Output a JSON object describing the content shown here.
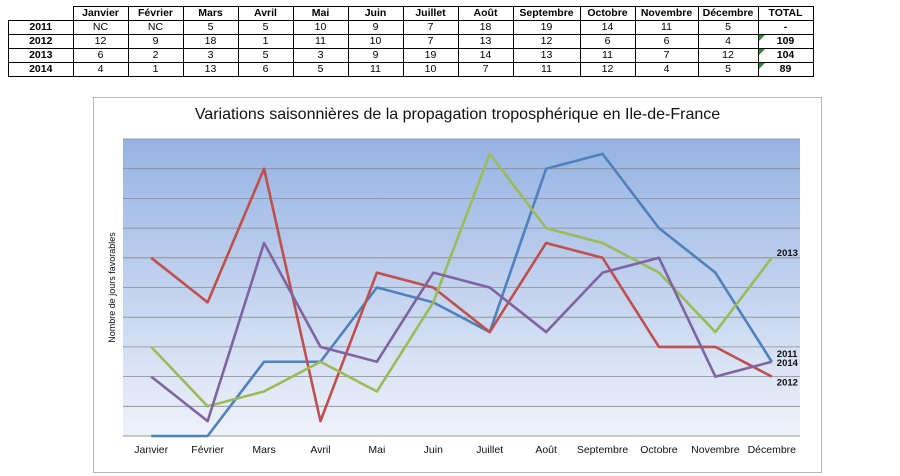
{
  "table": {
    "headers": [
      "",
      "Janvier",
      "Février",
      "Mars",
      "Avril",
      "Mai",
      "Juin",
      "Juillet",
      "Août",
      "Septembre",
      "Octobre",
      "Novembre",
      "Décembre",
      "TOTAL"
    ],
    "rows": [
      {
        "year": "2011",
        "cells": [
          "NC",
          "NC",
          "5",
          "5",
          "10",
          "9",
          "7",
          "18",
          "19",
          "14",
          "11",
          "5"
        ],
        "total": "-"
      },
      {
        "year": "2012",
        "cells": [
          "12",
          "9",
          "18",
          "1",
          "11",
          "10",
          "7",
          "13",
          "12",
          "6",
          "6",
          "4"
        ],
        "total": "109"
      },
      {
        "year": "2013",
        "cells": [
          "6",
          "2",
          "3",
          "5",
          "3",
          "9",
          "19",
          "14",
          "13",
          "11",
          "7",
          "12"
        ],
        "total": "104"
      },
      {
        "year": "2014",
        "cells": [
          "4",
          "1",
          "13",
          "6",
          "5",
          "11",
          "10",
          "7",
          "11",
          "12",
          "4",
          "5"
        ],
        "total": "89"
      }
    ]
  },
  "chart_data": {
    "type": "line",
    "title": "Variations saisonnières de la propagation troposphérique en Ile-de-France",
    "xlabel": "",
    "ylabel": "Nombre de jours favorables",
    "categories": [
      "Janvier",
      "Février",
      "Mars",
      "Avril",
      "Mai",
      "Juin",
      "Juillet",
      "Août",
      "Septembre",
      "Octobre",
      "Novembre",
      "Décembre"
    ],
    "ylim": [
      0,
      20
    ],
    "grid": true,
    "series": [
      {
        "name": "2011",
        "color": "#4f81bd",
        "values": [
          0,
          0,
          5,
          5,
          10,
          9,
          7,
          18,
          19,
          14,
          11,
          5
        ]
      },
      {
        "name": "2012",
        "color": "#c0504d",
        "values": [
          12,
          9,
          18,
          1,
          11,
          10,
          7,
          13,
          12,
          6,
          6,
          4
        ]
      },
      {
        "name": "2013",
        "color": "#9bbb59",
        "values": [
          6,
          2,
          3,
          5,
          3,
          9,
          19,
          14,
          13,
          11,
          7,
          12
        ]
      },
      {
        "name": "2014",
        "color": "#8064a2",
        "values": [
          4,
          1,
          13,
          6,
          5,
          11,
          10,
          7,
          11,
          12,
          4,
          5
        ]
      }
    ]
  }
}
